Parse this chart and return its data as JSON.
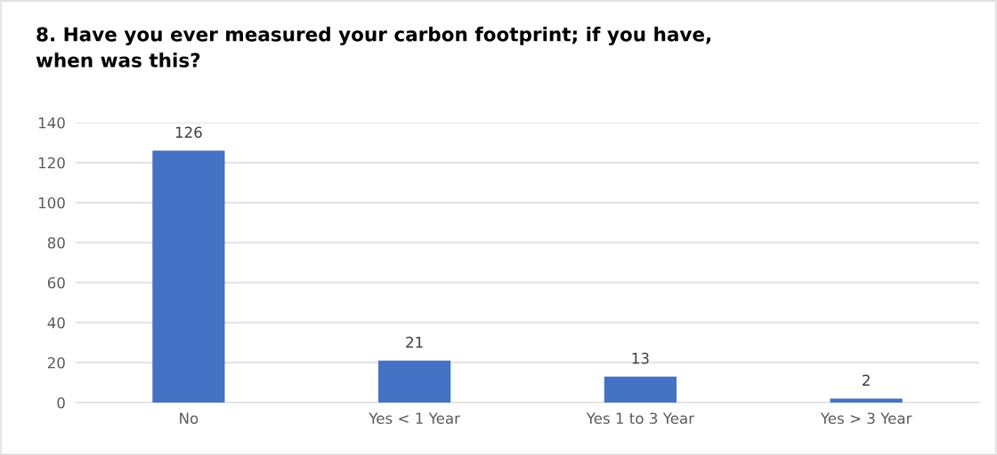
{
  "chart_data": {
    "type": "bar",
    "title": "8. Have you ever measured your carbon footprint; if you have,\nwhen was this?",
    "categories": [
      "No",
      "Yes < 1 Year",
      "Yes 1 to 3 Year",
      "Yes > 3 Year"
    ],
    "values": [
      126,
      21,
      13,
      2
    ],
    "color": "#4472c4",
    "ylim": [
      0,
      140
    ],
    "yticks": [
      0,
      20,
      40,
      60,
      80,
      100,
      120,
      140
    ],
    "grid": "y",
    "data_labels": true,
    "legend": false
  }
}
